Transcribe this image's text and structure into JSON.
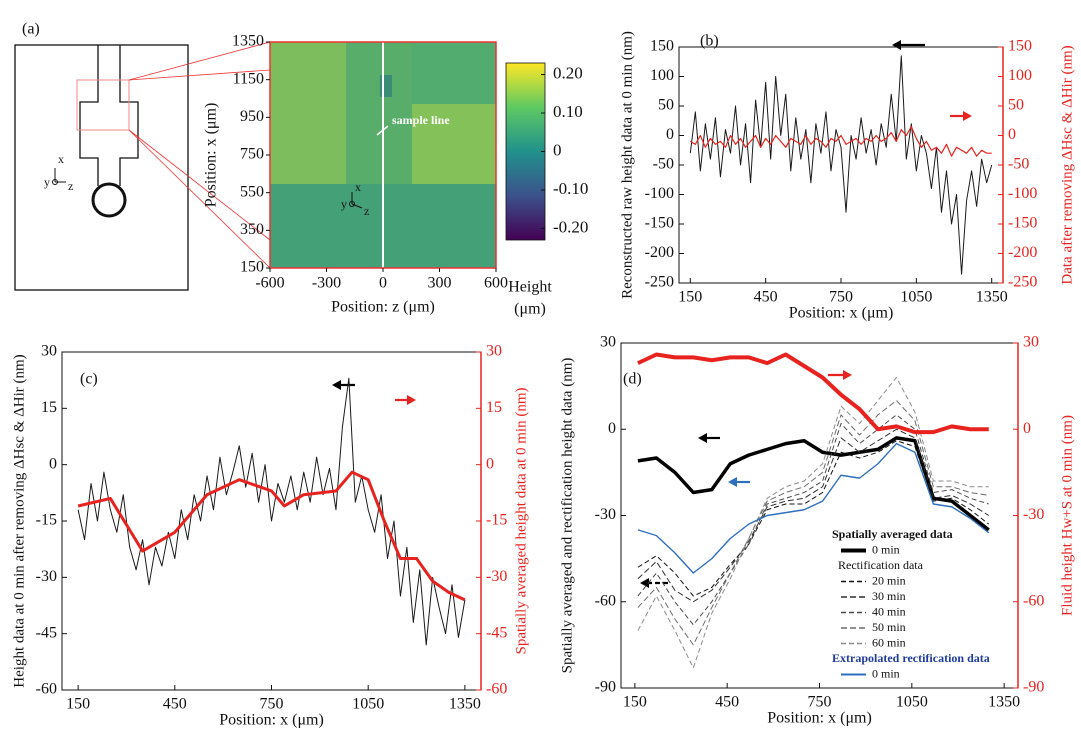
{
  "chart_data": [
    {
      "type": "heatmap",
      "panel_label": "(a)",
      "xlabel": "Position: z (μm)",
      "ylabel": "Position: x (μm)",
      "xlim": [
        -600,
        600
      ],
      "ylim": [
        150,
        1350
      ],
      "xticks": [
        -600,
        -300,
        0,
        300,
        600
      ],
      "yticks": [
        150,
        350,
        550,
        750,
        950,
        1150,
        1350
      ],
      "annotation": "sample line",
      "orientation_labels": [
        "x",
        "y",
        "z"
      ],
      "colorbar": {
        "label": [
          "Height",
          "(μm)"
        ],
        "lim": [
          -0.23,
          0.23
        ],
        "ticks": [
          {
            "value": 0.2,
            "label": "0.20"
          },
          {
            "value": 0.1,
            "label": "0.10"
          },
          0,
          {
            "value": -0.1,
            "label": "-0.10"
          },
          {
            "value": -0.2,
            "label": "-0.20"
          }
        ],
        "colors": [
          "#440154",
          "#3b528b",
          "#21918c",
          "#5ec962",
          "#fde725"
        ]
      }
    },
    {
      "type": "line",
      "panel_label": "(b)",
      "xlabel": "Position: x (μm)",
      "ylabel": "Reconstructed raw height data at 0 min (nm)",
      "y2label": "Data after removing ΔHsc & ΔHir (nm)",
      "y2_color": "#e8231f",
      "xlim": [
        105,
        1395
      ],
      "ylim": [
        -250,
        150
      ],
      "y2lim": [
        -250,
        150
      ],
      "xticks": [
        150,
        450,
        750,
        1050,
        1350
      ],
      "yticks": [
        -250,
        -200,
        -150,
        -100,
        -50,
        0,
        50,
        100,
        150
      ],
      "y2ticks": [
        -250,
        -200,
        -150,
        -100,
        -50,
        0,
        50,
        100,
        150
      ],
      "x": [
        150,
        170,
        190,
        210,
        230,
        250,
        270,
        290,
        310,
        330,
        350,
        370,
        390,
        410,
        430,
        450,
        470,
        490,
        510,
        530,
        550,
        570,
        590,
        610,
        630,
        650,
        670,
        690,
        710,
        730,
        750,
        770,
        790,
        810,
        830,
        850,
        870,
        890,
        910,
        930,
        950,
        970,
        990,
        1010,
        1030,
        1050,
        1070,
        1090,
        1110,
        1130,
        1150,
        1170,
        1190,
        1210,
        1230,
        1250,
        1270,
        1290,
        1310,
        1330,
        1350
      ],
      "series": [
        {
          "color": "#1a1a1a",
          "width": 1,
          "values": [
            -30,
            40,
            -60,
            20,
            -40,
            30,
            -70,
            10,
            -30,
            50,
            -50,
            20,
            -80,
            60,
            -20,
            90,
            -40,
            100,
            0,
            70,
            -60,
            30,
            -40,
            10,
            -80,
            20,
            -30,
            40,
            -60,
            10,
            -20,
            -130,
            0,
            -40,
            30,
            -30,
            10,
            -50,
            20,
            -20,
            70,
            -10,
            135,
            -40,
            20,
            -60,
            0,
            -30,
            -90,
            -20,
            -130,
            -60,
            -150,
            -100,
            -235,
            -110,
            -60,
            -120,
            -40,
            -80,
            -50
          ]
        },
        {
          "color": "#e8231f",
          "width": 1.2,
          "axis": "y2",
          "values": [
            -10,
            -15,
            0,
            -20,
            -5,
            -15,
            -10,
            -20,
            0,
            -15,
            -5,
            -20,
            -10,
            0,
            -20,
            -5,
            -15,
            0,
            -10,
            -20,
            -5,
            -10,
            -15,
            0,
            -15,
            -5,
            -10,
            -20,
            -5,
            -10,
            0,
            -15,
            -10,
            -5,
            -15,
            -5,
            -10,
            0,
            -10,
            -5,
            5,
            -10,
            10,
            0,
            15,
            -5,
            -20,
            -10,
            -25,
            -20,
            -30,
            -15,
            -35,
            -20,
            -25,
            -30,
            -20,
            -35,
            -25,
            -30,
            -30
          ]
        }
      ]
    },
    {
      "type": "line",
      "panel_label": "(c)",
      "xlabel": "Position: x (μm)",
      "ylabel": "Height data at 0 min after removing ΔHsc & ΔHir (nm)",
      "y2label": "Spatially averaged height data at 0 min (nm)",
      "y2_color": "#e8231f",
      "xlim": [
        100,
        1400
      ],
      "ylim": [
        -60,
        30
      ],
      "y2lim": [
        -60,
        30
      ],
      "xticks": [
        150,
        450,
        750,
        1050,
        1350
      ],
      "yticks": [
        -60,
        -45,
        -30,
        -15,
        0,
        15,
        30
      ],
      "y2ticks": [
        -60,
        -45,
        -30,
        -15,
        0,
        15,
        30
      ],
      "x": [
        150,
        170,
        190,
        210,
        230,
        250,
        270,
        290,
        310,
        330,
        350,
        370,
        390,
        410,
        430,
        450,
        470,
        490,
        510,
        530,
        550,
        570,
        590,
        610,
        630,
        650,
        670,
        690,
        710,
        730,
        750,
        770,
        790,
        810,
        830,
        850,
        870,
        890,
        910,
        930,
        950,
        970,
        990,
        1010,
        1030,
        1050,
        1070,
        1090,
        1110,
        1130,
        1150,
        1170,
        1190,
        1210,
        1230,
        1250,
        1270,
        1290,
        1310,
        1330,
        1350
      ],
      "series": [
        {
          "color": "#1a1a1a",
          "width": 1,
          "values": [
            -12,
            -20,
            -5,
            -15,
            -2,
            -12,
            -18,
            -8,
            -22,
            -28,
            -20,
            -32,
            -22,
            -27,
            -18,
            -25,
            -12,
            -20,
            -8,
            -15,
            -3,
            -12,
            2,
            -8,
            -2,
            5,
            -6,
            3,
            -10,
            0,
            -15,
            -5,
            -10,
            -3,
            -12,
            -2,
            -10,
            2,
            -8,
            -1,
            -12,
            10,
            23,
            -10,
            -3,
            -12,
            -18,
            -8,
            -25,
            -15,
            -35,
            -22,
            -42,
            -28,
            -48,
            -30,
            -38,
            -45,
            -32,
            -46,
            -36
          ]
        },
        {
          "color": "#e8231f",
          "width": 3,
          "axis": "y2",
          "x": [
            150,
            250,
            350,
            450,
            550,
            650,
            750,
            790,
            850,
            950,
            1000,
            1050,
            1100,
            1150,
            1200,
            1250,
            1300,
            1350
          ],
          "values": [
            -11,
            -9,
            -23,
            -18,
            -8,
            -4,
            -7,
            -11,
            -8,
            -7,
            -2,
            -4,
            -15,
            -25,
            -25,
            -31,
            -34,
            -36
          ]
        }
      ]
    },
    {
      "type": "line",
      "panel_label": "(d)",
      "xlabel": "Position: x (μm)",
      "ylabel": "Spatially averaged and rectification height data (nm)",
      "y2label": "Fluid height Hw+S at 0 min (nm)",
      "y2_color": "#e8231f",
      "xlim": [
        105,
        1395
      ],
      "ylim": [
        -90,
        30
      ],
      "y2lim": [
        -90,
        30
      ],
      "xticks": [
        150,
        450,
        750,
        1050,
        1350
      ],
      "yticks": [
        -90,
        -60,
        -30,
        0,
        30
      ],
      "y2ticks": [
        -90,
        -60,
        -30,
        0,
        30
      ],
      "legend_headings": [
        "Spatially averaged data",
        "Rectification data",
        "Extrapolated rectification data"
      ],
      "x": [
        160,
        220,
        280,
        340,
        400,
        460,
        520,
        580,
        640,
        700,
        760,
        820,
        880,
        940,
        1000,
        1060,
        1120,
        1180,
        1240,
        1300
      ],
      "series": [
        {
          "name": "0 min",
          "color": "#000000",
          "width": 3.5,
          "values": [
            -11,
            -10,
            -15,
            -22,
            -21,
            -12,
            -9,
            -7,
            -5,
            -4,
            -8,
            -9,
            -8,
            -7,
            -3,
            -4,
            -24,
            -25,
            -30,
            -35
          ]
        },
        {
          "name": "20 min",
          "color": "#111111",
          "width": 1,
          "dash": "5,3",
          "values": [
            -48,
            -44,
            -50,
            -58,
            -55,
            -47,
            -40,
            -28,
            -26,
            -26,
            -22,
            -8,
            -10,
            -8,
            -4,
            -6,
            -25,
            -24,
            -28,
            -33
          ]
        },
        {
          "name": "30 min",
          "color": "#2e2e2e",
          "width": 1,
          "dash": "6,3",
          "values": [
            -52,
            -46,
            -56,
            -60,
            -56,
            -48,
            -39,
            -27,
            -25,
            -24,
            -20,
            -3,
            -8,
            -4,
            0,
            -3,
            -24,
            -23,
            -26,
            -30
          ]
        },
        {
          "name": "40 min",
          "color": "#4a4a4a",
          "width": 1,
          "dash": "5,3",
          "values": [
            -58,
            -50,
            -60,
            -68,
            -60,
            -50,
            -40,
            -26,
            -24,
            -22,
            -18,
            2,
            -5,
            0,
            5,
            0,
            -22,
            -21,
            -24,
            -26
          ]
        },
        {
          "name": "50 min",
          "color": "#6b6b6b",
          "width": 1,
          "dash": "6,3",
          "values": [
            -62,
            -55,
            -66,
            -75,
            -62,
            -50,
            -38,
            -25,
            -22,
            -20,
            -15,
            5,
            -2,
            5,
            10,
            3,
            -20,
            -20,
            -22,
            -23
          ]
        },
        {
          "name": "60 min",
          "color": "#8c8c8c",
          "width": 1,
          "dash": "5,3",
          "values": [
            -70,
            -58,
            -70,
            -83,
            -64,
            -52,
            -38,
            -24,
            -20,
            -18,
            -12,
            8,
            2,
            10,
            18,
            6,
            -18,
            -18,
            -20,
            -20
          ]
        },
        {
          "name": "0 min",
          "color": "#2f6fbd",
          "width": 1.4,
          "values": [
            -35,
            -37,
            -43,
            -50,
            -45,
            -38,
            -33,
            -30,
            -29,
            -28,
            -25,
            -16,
            -17,
            -12,
            -5,
            -8,
            -26,
            -27,
            -31,
            -36
          ]
        },
        {
          "color": "#e8231f",
          "width": 4,
          "axis": "y2",
          "values": [
            23,
            26,
            25,
            25,
            24,
            25,
            25,
            23,
            26,
            22,
            18,
            12,
            7,
            0,
            1,
            -1,
            -1,
            1,
            0,
            0
          ]
        }
      ]
    }
  ]
}
